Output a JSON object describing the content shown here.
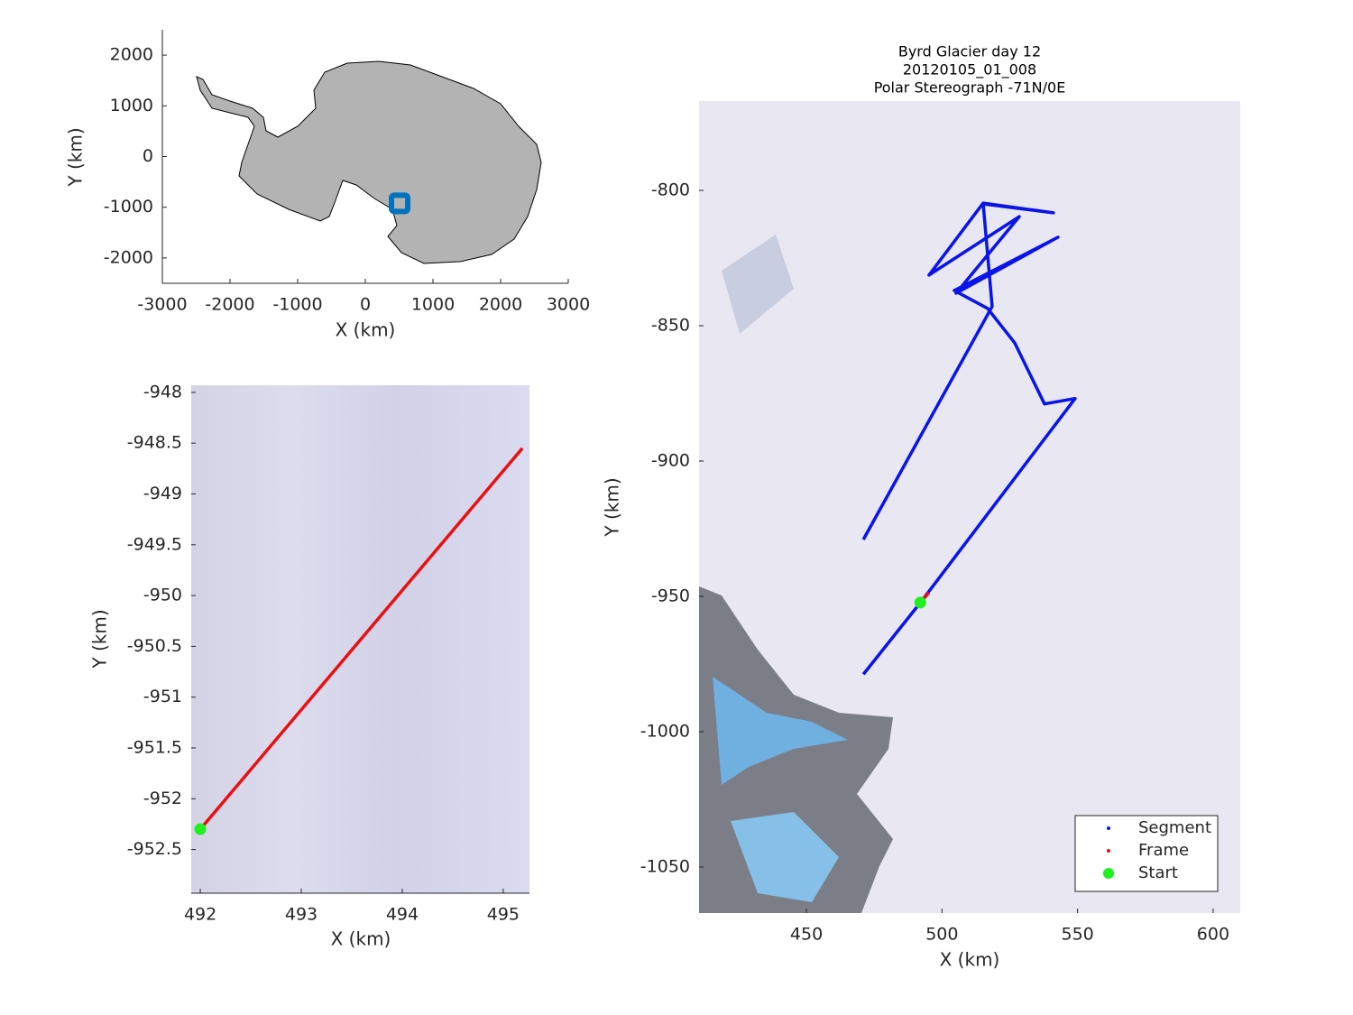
{
  "chart_data": [
    {
      "type": "map",
      "xlabel": "X (km)",
      "ylabel": "Y (km)",
      "xlim": [
        -3000,
        3000
      ],
      "ylim": [
        -2500,
        2500
      ],
      "xticks": [
        -3000,
        -2000,
        -1000,
        0,
        1000,
        2000,
        3000
      ],
      "yticks": [
        -2000,
        -1000,
        0,
        1000,
        2000
      ],
      "series": [
        {
          "color": "#0072bd",
          "mode": "marker",
          "marker": "square",
          "x": [
            507
          ],
          "values": [
            -924
          ]
        }
      ]
    },
    {
      "type": "map",
      "xlabel": "X (km)",
      "ylabel": "Y (km)",
      "xlim": [
        491.91,
        495.26
      ],
      "ylim": [
        -952.93,
        -947.93
      ],
      "xticks": [
        492,
        493,
        494,
        495
      ],
      "yticks": [
        -952.5,
        -952,
        -951.5,
        -951,
        -950.5,
        -950,
        -949.5,
        -949,
        -948.5,
        -948
      ],
      "series": [
        {
          "color": "#e81010",
          "mode": "line",
          "x": [
            492.0,
            495.19
          ],
          "values": [
            -952.3,
            -948.55
          ]
        },
        {
          "color": "#20f020",
          "mode": "marker",
          "marker": "circle",
          "x": [
            492.0
          ],
          "values": [
            -952.3
          ]
        }
      ]
    },
    {
      "type": "map",
      "title": [
        "Byrd Glacier day 12",
        "20120105_01_008",
        "Polar Stereograph -71N/0E"
      ],
      "xlabel": "X (km)",
      "ylabel": "Y (km)",
      "xlim": [
        410.4,
        610
      ],
      "ylim": [
        -1067,
        -767
      ],
      "xticks": [
        450,
        500,
        550,
        600
      ],
      "yticks": [
        -1050,
        -1000,
        -950,
        -900,
        -850,
        -800
      ],
      "legend": "southeast",
      "series": [
        {
          "name": "Segment",
          "color": "#0a14e6",
          "mode": "line",
          "x": [
            471.0,
            492.2,
            549.1,
            537.8,
            526.8,
            516.8,
            504.5,
            542.8,
            505.2,
            528.5,
            495.2,
            515.2,
            541.1,
            515.2,
            518.5,
            471.0
          ],
          "values": [
            -978.8,
            -952.1,
            -876.9,
            -878.9,
            -856.3,
            -843.6,
            -837.0,
            -817.3,
            -838.0,
            -809.7,
            -831.3,
            -804.7,
            -808.3,
            -805.0,
            -842.9,
            -929.0
          ]
        },
        {
          "name": "Frame",
          "color": "#e81010",
          "mode": "line",
          "x": [
            492.0,
            495.2
          ],
          "values": [
            -952.3,
            -948.6
          ]
        },
        {
          "name": "Start",
          "color": "#20f020",
          "mode": "marker",
          "marker": "circle",
          "x": [
            492.0
          ],
          "values": [
            -952.3
          ]
        }
      ]
    }
  ]
}
